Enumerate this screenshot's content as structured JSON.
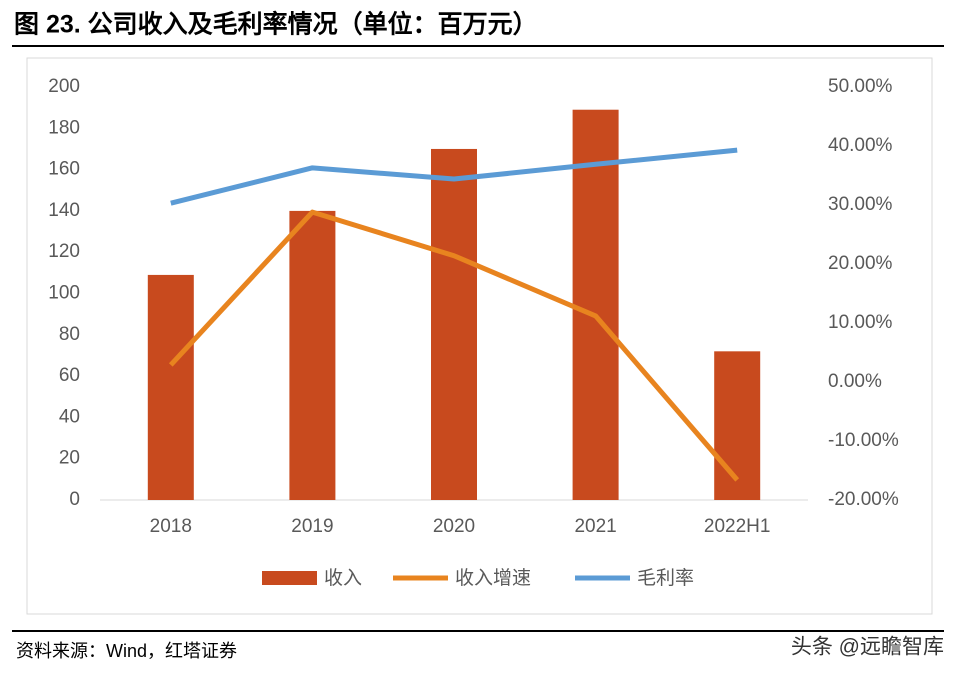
{
  "chart_data": {
    "type": "combo",
    "title": "图 23. 公司收入及毛利率情况（单位：百万元）",
    "source": "资料来源：Wind，红塔证券",
    "watermark": "头条 @远瞻智库",
    "categories": [
      "2018",
      "2019",
      "2020",
      "2021",
      "2022H1"
    ],
    "series": [
      {
        "name": "收入",
        "type": "bar",
        "color": "#c84a1e",
        "values": [
          109,
          140,
          170,
          189,
          72
        ]
      },
      {
        "name": "收入增速",
        "type": "line",
        "axis": "y2",
        "color": "#e8841f",
        "values": [
          2.9,
          28.8,
          21.4,
          11.2,
          -16.6
        ]
      },
      {
        "name": "毛利率",
        "type": "line",
        "axis": "y2",
        "color": "#5b9bd5",
        "values": [
          30.3,
          36.3,
          34.4,
          36.9,
          39.3
        ]
      }
    ],
    "ylim": [
      0,
      200
    ],
    "yticks": [
      0,
      20,
      40,
      60,
      80,
      100,
      120,
      140,
      160,
      180,
      200
    ],
    "y2lim": [
      -20,
      50
    ],
    "y2ticks": [
      {
        "value": -20,
        "label": "-20.00%"
      },
      {
        "value": -10,
        "label": "-10.00%"
      },
      {
        "value": 0,
        "label": "0.00%"
      },
      {
        "value": 10,
        "label": "10.00%"
      },
      {
        "value": 20,
        "label": "20.00%"
      },
      {
        "value": 30,
        "label": "30.00%"
      },
      {
        "value": 40,
        "label": "40.00%"
      },
      {
        "value": 50,
        "label": "50.00%"
      }
    ],
    "grid": false,
    "legend": "bottom"
  }
}
